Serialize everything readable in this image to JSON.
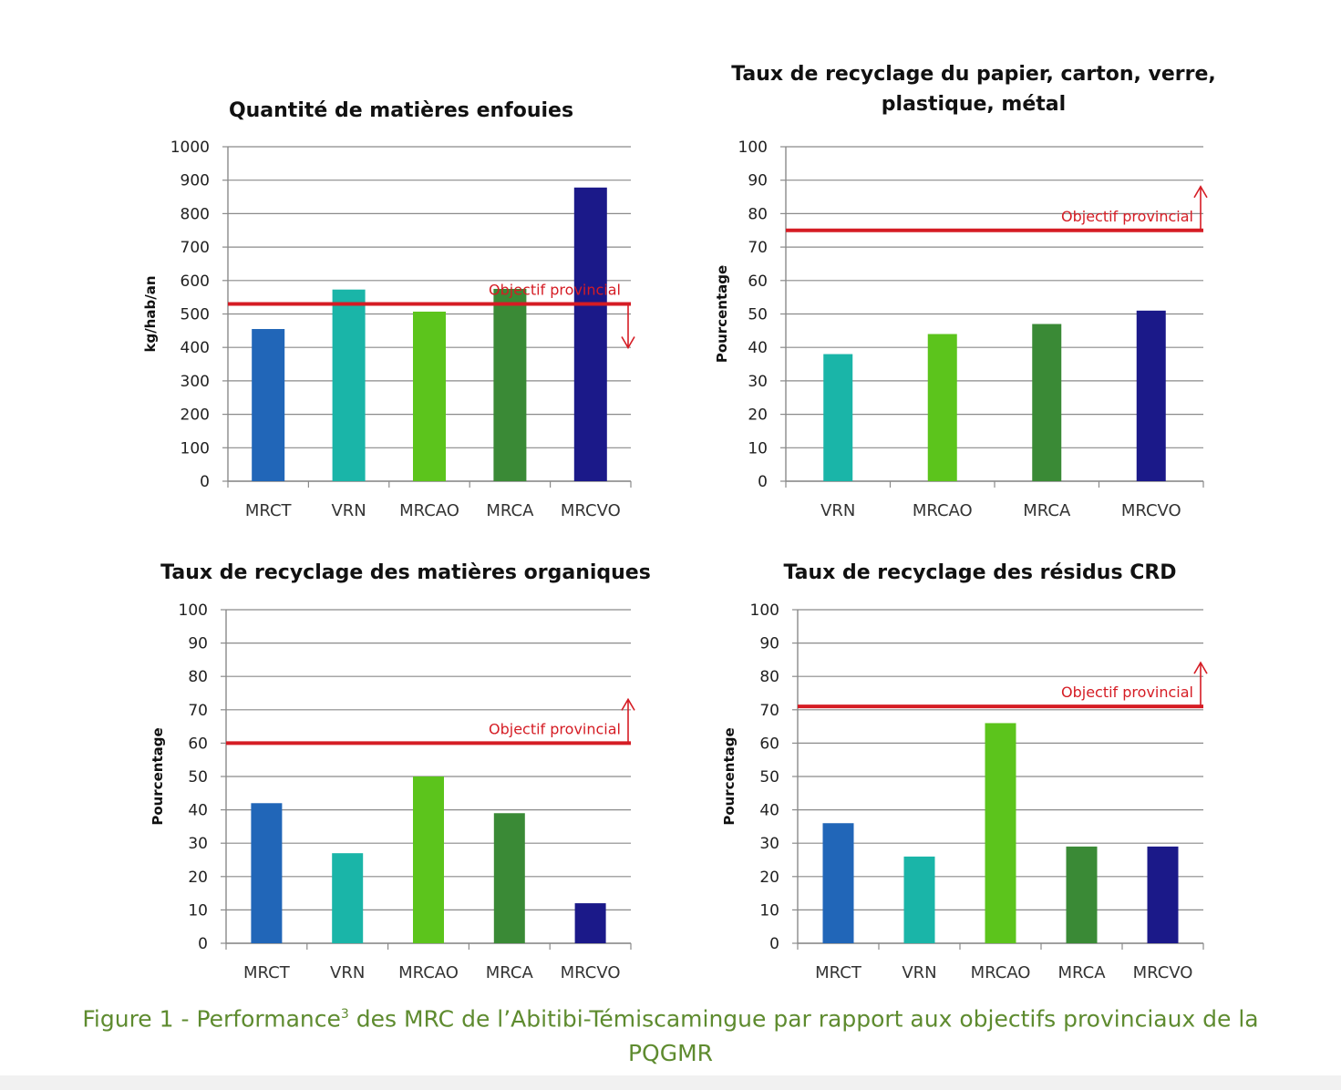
{
  "colors": {
    "MRCT": "#2166b8",
    "VRN": "#1ab5a8",
    "MRCAO": "#5cc41c",
    "MRCA": "#3a8a36",
    "MRCVO": "#1b1989",
    "objective": "#d51c24",
    "caption": "#5e8b2f"
  },
  "chart_data": [
    {
      "type": "bar",
      "title": [
        "Quantité de matières enfouies"
      ],
      "ylabel": "kg/hab/an",
      "ylim": [
        0,
        1000
      ],
      "ytick_step": 100,
      "yticks": [
        "0",
        "100",
        "200",
        "300",
        "400",
        "500",
        "600",
        "700",
        "800",
        "900",
        "1000"
      ],
      "categories": [
        "MRCT",
        "VRN",
        "MRCAO",
        "MRCA",
        "MRCVO"
      ],
      "values": [
        455,
        573,
        507,
        575,
        878
      ],
      "objective": {
        "label": "Objectif provincial",
        "value": 530,
        "direction": "down"
      }
    },
    {
      "type": "bar",
      "title": [
        "Taux de recyclage du papier, carton, verre,",
        "plastique, métal"
      ],
      "ylabel": "Pourcentage",
      "ylim": [
        0,
        100
      ],
      "ytick_step": 10,
      "yticks": [
        "0",
        "10",
        "20",
        "30",
        "40",
        "50",
        "60",
        "70",
        "80",
        "90",
        "100"
      ],
      "categories": [
        "VRN",
        "MRCAO",
        "MRCA",
        "MRCVO"
      ],
      "values": [
        38,
        44,
        47,
        51
      ],
      "objective": {
        "label": "Objectif provincial",
        "value": 75,
        "direction": "up"
      }
    },
    {
      "type": "bar",
      "title": [
        "Taux de recyclage des matières organiques"
      ],
      "ylabel": "Pourcentage",
      "ylim": [
        0,
        100
      ],
      "ytick_step": 10,
      "yticks": [
        "0",
        "10",
        "20",
        "30",
        "40",
        "50",
        "60",
        "70",
        "80",
        "90",
        "100"
      ],
      "categories": [
        "MRCT",
        "VRN",
        "MRCAO",
        "MRCA",
        "MRCVO"
      ],
      "values": [
        42,
        27,
        50,
        39,
        12
      ],
      "objective": {
        "label": "Objectif provincial",
        "value": 60,
        "direction": "up"
      }
    },
    {
      "type": "bar",
      "title": [
        "Taux de recyclage des résidus CRD"
      ],
      "ylabel": "Pourcentage",
      "ylim": [
        0,
        100
      ],
      "ytick_step": 10,
      "yticks": [
        "0",
        "10",
        "20",
        "30",
        "40",
        "50",
        "60",
        "70",
        "80",
        "90",
        "100"
      ],
      "categories": [
        "MRCT",
        "VRN",
        "MRCAO",
        "MRCA",
        "MRCVO"
      ],
      "values": [
        36,
        26,
        66,
        29,
        29
      ],
      "objective": {
        "label": "Objectif provincial",
        "value": 71,
        "direction": "up"
      }
    }
  ],
  "caption": {
    "prefix": "Figure 1 - Performance",
    "superscript": "3",
    "suffix": " des MRC de l’Abitibi-Témiscamingue par rapport aux objectifs provinciaux de la",
    "line2": "PQGMR"
  }
}
